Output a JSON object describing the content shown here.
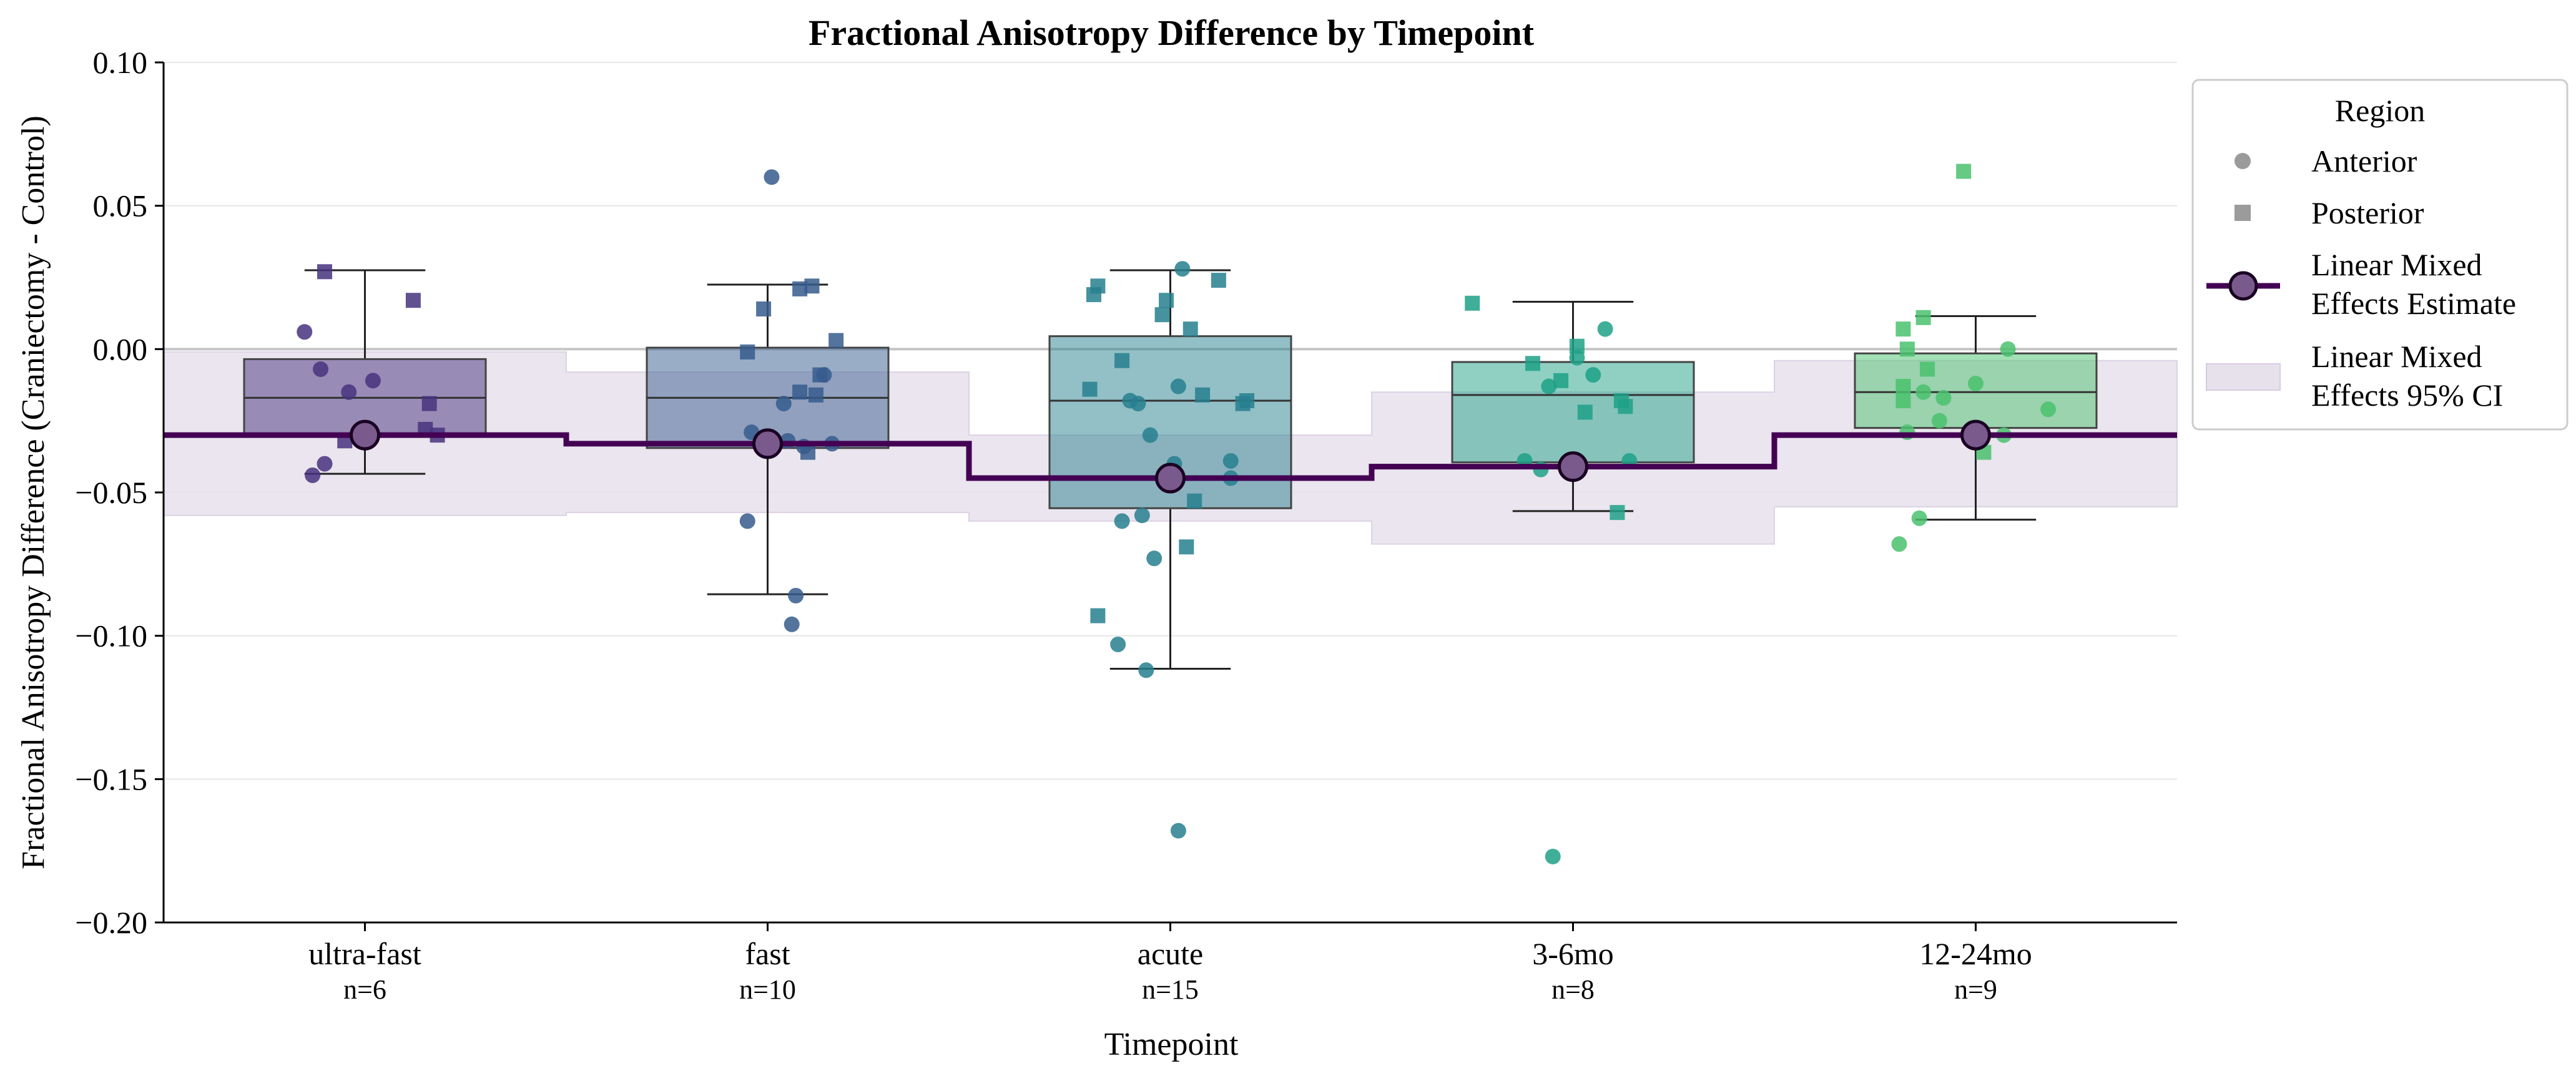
{
  "chart_data": {
    "type": "box",
    "title": "Fractional Anisotropy Difference by Timepoint",
    "xlabel": "Timepoint",
    "ylabel": "Fractional Anisotropy Difference (Craniectomy - Control)",
    "ylim": [
      -0.2,
      0.1
    ],
    "yticks": [
      "0.10",
      "0.05",
      "0.00",
      "−0.05",
      "−0.10",
      "−0.15",
      "−0.20"
    ],
    "ytick_values": [
      0.1,
      0.05,
      0.0,
      -0.05,
      -0.1,
      -0.15,
      -0.2
    ],
    "grid": "horizontal",
    "reference_line": 0.0,
    "legend": {
      "title": "Region",
      "placement": "right-outside",
      "items": [
        {
          "key": "anterior",
          "label": "Anterior"
        },
        {
          "key": "posterior",
          "label": "Posterior"
        },
        {
          "key": "lme",
          "label_lines": [
            "Linear Mixed",
            "Effects Estimate"
          ]
        },
        {
          "key": "ci",
          "label_lines": [
            "Linear Mixed",
            "Effects 95% CI"
          ]
        }
      ]
    },
    "colors": {
      "lme_line": "#440154",
      "lme_marker": "#7a5a8c",
      "ci_fill": "#e7e1ec",
      "ci_edge": "#d6cbe0",
      "grid": "#e6e6e6",
      "zero_line": "#c4c4c4",
      "legend_marker": "#9b9b9b"
    },
    "categories": [
      {
        "label": "ultra-fast",
        "n_label": "n=6",
        "color": "#46327e",
        "box": {
          "q1": -0.0295,
          "median": -0.017,
          "q3": -0.0035,
          "whisker_low": -0.0435,
          "whisker_high": 0.0275
        },
        "lme": {
          "estimate": -0.03,
          "ci": [
            -0.058,
            -0.001
          ]
        },
        "points": [
          {
            "x": -0.15,
            "y": 0.006,
            "region": "anterior"
          },
          {
            "x": -0.11,
            "y": -0.007,
            "region": "anterior"
          },
          {
            "x": -0.04,
            "y": -0.015,
            "region": "anterior"
          },
          {
            "x": 0.02,
            "y": -0.011,
            "region": "anterior"
          },
          {
            "x": -0.1,
            "y": -0.04,
            "region": "anterior"
          },
          {
            "x": -0.13,
            "y": -0.044,
            "region": "anterior"
          },
          {
            "x": -0.1,
            "y": 0.027,
            "region": "posterior"
          },
          {
            "x": 0.12,
            "y": 0.017,
            "region": "posterior"
          },
          {
            "x": 0.16,
            "y": -0.019,
            "region": "posterior"
          },
          {
            "x": 0.15,
            "y": -0.028,
            "region": "posterior"
          },
          {
            "x": 0.18,
            "y": -0.03,
            "region": "posterior"
          },
          {
            "x": -0.05,
            "y": -0.032,
            "region": "posterior"
          }
        ]
      },
      {
        "label": "fast",
        "n_label": "n=10",
        "color": "#365c8d",
        "box": {
          "q1": -0.0345,
          "median": -0.017,
          "q3": 0.0005,
          "whisker_low": -0.0855,
          "whisker_high": 0.0225
        },
        "lme": {
          "estimate": -0.033,
          "ci": [
            -0.057,
            -0.008
          ]
        },
        "points": [
          {
            "x": 0.01,
            "y": 0.06,
            "region": "anterior"
          },
          {
            "x": -0.04,
            "y": -0.029,
            "region": "anterior"
          },
          {
            "x": 0.05,
            "y": -0.032,
            "region": "anterior"
          },
          {
            "x": 0.09,
            "y": -0.034,
            "region": "anterior"
          },
          {
            "x": 0.16,
            "y": -0.033,
            "region": "anterior"
          },
          {
            "x": 0.04,
            "y": -0.019,
            "region": "anterior"
          },
          {
            "x": 0.14,
            "y": -0.009,
            "region": "anterior"
          },
          {
            "x": -0.05,
            "y": -0.06,
            "region": "anterior"
          },
          {
            "x": 0.07,
            "y": -0.086,
            "region": "anterior"
          },
          {
            "x": 0.06,
            "y": -0.096,
            "region": "anterior"
          },
          {
            "x": -0.01,
            "y": 0.014,
            "region": "posterior"
          },
          {
            "x": 0.08,
            "y": 0.021,
            "region": "posterior"
          },
          {
            "x": 0.11,
            "y": 0.022,
            "region": "posterior"
          },
          {
            "x": 0.17,
            "y": 0.003,
            "region": "posterior"
          },
          {
            "x": -0.05,
            "y": -0.001,
            "region": "posterior"
          },
          {
            "x": 0.13,
            "y": -0.009,
            "region": "posterior"
          },
          {
            "x": 0.08,
            "y": -0.015,
            "region": "posterior"
          },
          {
            "x": 0.12,
            "y": -0.016,
            "region": "posterior"
          },
          {
            "x": 0.1,
            "y": -0.036,
            "region": "posterior"
          }
        ]
      },
      {
        "label": "acute",
        "n_label": "n=15",
        "color": "#277f8e",
        "box": {
          "q1": -0.0555,
          "median": -0.018,
          "q3": 0.0045,
          "whisker_low": -0.1115,
          "whisker_high": 0.0275
        },
        "lme": {
          "estimate": -0.045,
          "ci": [
            -0.06,
            -0.03
          ]
        },
        "points": [
          {
            "x": 0.03,
            "y": 0.028,
            "region": "anterior"
          },
          {
            "x": -0.1,
            "y": -0.018,
            "region": "anterior"
          },
          {
            "x": -0.08,
            "y": -0.019,
            "region": "anterior"
          },
          {
            "x": 0.02,
            "y": -0.013,
            "region": "anterior"
          },
          {
            "x": -0.05,
            "y": -0.03,
            "region": "anterior"
          },
          {
            "x": 0.01,
            "y": -0.04,
            "region": "anterior"
          },
          {
            "x": 0.15,
            "y": -0.039,
            "region": "anterior"
          },
          {
            "x": 0.15,
            "y": -0.045,
            "region": "anterior"
          },
          {
            "x": -0.07,
            "y": -0.058,
            "region": "anterior"
          },
          {
            "x": -0.12,
            "y": -0.06,
            "region": "anterior"
          },
          {
            "x": -0.04,
            "y": -0.073,
            "region": "anterior"
          },
          {
            "x": -0.13,
            "y": -0.103,
            "region": "anterior"
          },
          {
            "x": -0.06,
            "y": -0.112,
            "region": "anterior"
          },
          {
            "x": 0.02,
            "y": -0.168,
            "region": "anterior"
          },
          {
            "x": -0.18,
            "y": 0.022,
            "region": "posterior"
          },
          {
            "x": -0.19,
            "y": 0.019,
            "region": "posterior"
          },
          {
            "x": -0.01,
            "y": 0.017,
            "region": "posterior"
          },
          {
            "x": -0.02,
            "y": 0.012,
            "region": "posterior"
          },
          {
            "x": 0.12,
            "y": 0.024,
            "region": "posterior"
          },
          {
            "x": 0.05,
            "y": 0.007,
            "region": "posterior"
          },
          {
            "x": -0.12,
            "y": -0.004,
            "region": "posterior"
          },
          {
            "x": -0.2,
            "y": -0.014,
            "region": "posterior"
          },
          {
            "x": 0.08,
            "y": -0.016,
            "region": "posterior"
          },
          {
            "x": 0.19,
            "y": -0.018,
            "region": "posterior"
          },
          {
            "x": 0.18,
            "y": -0.019,
            "region": "posterior"
          },
          {
            "x": 0.06,
            "y": -0.053,
            "region": "posterior"
          },
          {
            "x": 0.04,
            "y": -0.069,
            "region": "posterior"
          },
          {
            "x": -0.18,
            "y": -0.093,
            "region": "posterior"
          }
        ]
      },
      {
        "label": "3-6mo",
        "n_label": "n=8",
        "color": "#1fa187",
        "box": {
          "q1": -0.0395,
          "median": -0.016,
          "q3": -0.0045,
          "whisker_low": -0.0565,
          "whisker_high": 0.0165
        },
        "lme": {
          "estimate": -0.041,
          "ci": [
            -0.068,
            -0.015
          ]
        },
        "points": [
          {
            "x": 0.08,
            "y": 0.007,
            "region": "anterior"
          },
          {
            "x": 0.05,
            "y": -0.009,
            "region": "anterior"
          },
          {
            "x": 0.01,
            "y": -0.003,
            "region": "anterior"
          },
          {
            "x": -0.06,
            "y": -0.013,
            "region": "anterior"
          },
          {
            "x": -0.12,
            "y": -0.039,
            "region": "anterior"
          },
          {
            "x": -0.08,
            "y": -0.042,
            "region": "anterior"
          },
          {
            "x": 0.14,
            "y": -0.039,
            "region": "anterior"
          },
          {
            "x": -0.05,
            "y": -0.177,
            "region": "anterior"
          },
          {
            "x": -0.25,
            "y": 0.016,
            "region": "posterior"
          },
          {
            "x": 0.01,
            "y": 0.001,
            "region": "posterior"
          },
          {
            "x": -0.1,
            "y": -0.005,
            "region": "posterior"
          },
          {
            "x": -0.03,
            "y": -0.011,
            "region": "posterior"
          },
          {
            "x": 0.12,
            "y": -0.018,
            "region": "posterior"
          },
          {
            "x": 0.13,
            "y": -0.02,
            "region": "posterior"
          },
          {
            "x": 0.03,
            "y": -0.022,
            "region": "posterior"
          },
          {
            "x": 0.11,
            "y": -0.057,
            "region": "posterior"
          }
        ]
      },
      {
        "label": "12-24mo",
        "n_label": "n=9",
        "color": "#4ac16d",
        "box": {
          "q1": -0.0275,
          "median": -0.015,
          "q3": -0.0015,
          "whisker_low": -0.0595,
          "whisker_high": 0.0115
        },
        "lme": {
          "estimate": -0.03,
          "ci": [
            -0.055,
            -0.004
          ]
        },
        "points": [
          {
            "x": 0.08,
            "y": 0.0,
            "region": "anterior"
          },
          {
            "x": -0.08,
            "y": -0.017,
            "region": "anterior"
          },
          {
            "x": 0.0,
            "y": -0.012,
            "region": "anterior"
          },
          {
            "x": -0.13,
            "y": -0.015,
            "region": "anterior"
          },
          {
            "x": -0.09,
            "y": -0.025,
            "region": "anterior"
          },
          {
            "x": -0.17,
            "y": -0.029,
            "region": "anterior"
          },
          {
            "x": 0.07,
            "y": -0.03,
            "region": "anterior"
          },
          {
            "x": 0.18,
            "y": -0.021,
            "region": "anterior"
          },
          {
            "x": -0.14,
            "y": -0.059,
            "region": "anterior"
          },
          {
            "x": -0.19,
            "y": -0.068,
            "region": "anterior"
          },
          {
            "x": -0.03,
            "y": 0.062,
            "region": "posterior"
          },
          {
            "x": -0.13,
            "y": 0.011,
            "region": "posterior"
          },
          {
            "x": -0.18,
            "y": 0.007,
            "region": "posterior"
          },
          {
            "x": -0.17,
            "y": 0.0,
            "region": "posterior"
          },
          {
            "x": -0.12,
            "y": -0.007,
            "region": "posterior"
          },
          {
            "x": -0.18,
            "y": -0.013,
            "region": "posterior"
          },
          {
            "x": -0.18,
            "y": -0.018,
            "region": "posterior"
          },
          {
            "x": 0.02,
            "y": -0.036,
            "region": "posterior"
          }
        ]
      }
    ]
  }
}
